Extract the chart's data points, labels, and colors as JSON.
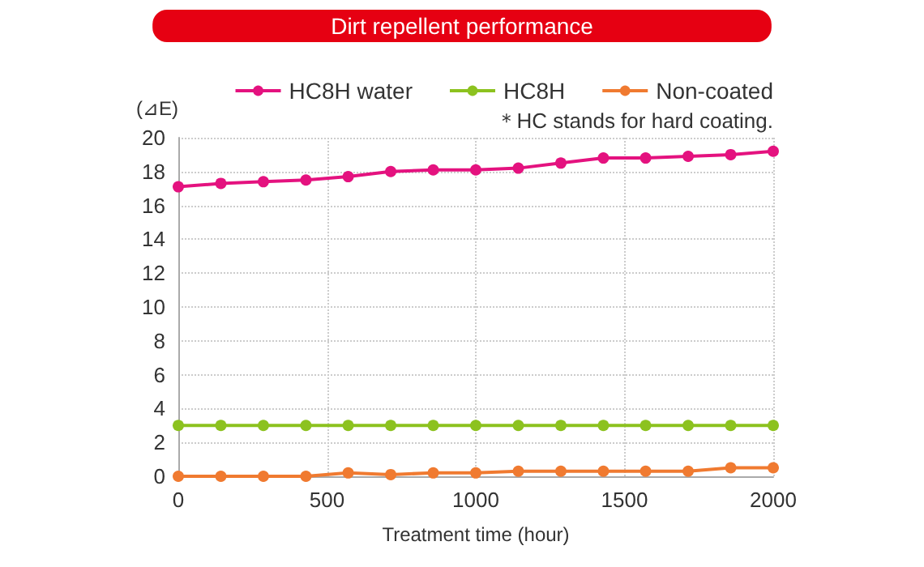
{
  "chart_data": {
    "type": "line",
    "title": "Dirt repellent performance",
    "xlabel": "Treatment time (hour)",
    "ylabel": "(⊿E)",
    "annotations": [
      "＊HC stands for hard coating."
    ],
    "x": [
      0,
      143,
      286,
      429,
      571,
      714,
      857,
      1000,
      1143,
      1286,
      1429,
      1571,
      1714,
      1857,
      2000
    ],
    "series": [
      {
        "name": "HC8H water",
        "color": "#e4127f",
        "values": [
          17.1,
          17.3,
          17.4,
          17.5,
          17.7,
          18.0,
          18.1,
          18.1,
          18.2,
          18.5,
          18.8,
          18.8,
          18.9,
          19.0,
          19.2
        ]
      },
      {
        "name": "HC8H",
        "color": "#8cc21f",
        "values": [
          3,
          3,
          3,
          3,
          3,
          3,
          3,
          3,
          3,
          3,
          3,
          3,
          3,
          3,
          3
        ]
      },
      {
        "name": "Non-coated",
        "color": "#f07a30",
        "values": [
          0,
          0,
          0,
          0,
          0.2,
          0.1,
          0.2,
          0.2,
          0.3,
          0.3,
          0.3,
          0.3,
          0.3,
          0.5,
          0.5
        ]
      }
    ],
    "xlim": [
      0,
      2000
    ],
    "xticks": [
      0,
      500,
      1000,
      1500,
      2000
    ],
    "ylim": [
      0,
      20
    ],
    "yticks": [
      0,
      2,
      4,
      6,
      8,
      10,
      12,
      14,
      16,
      18,
      20
    ],
    "grid": true,
    "legend": "top right",
    "marker": "circle",
    "line_style": "solid"
  }
}
